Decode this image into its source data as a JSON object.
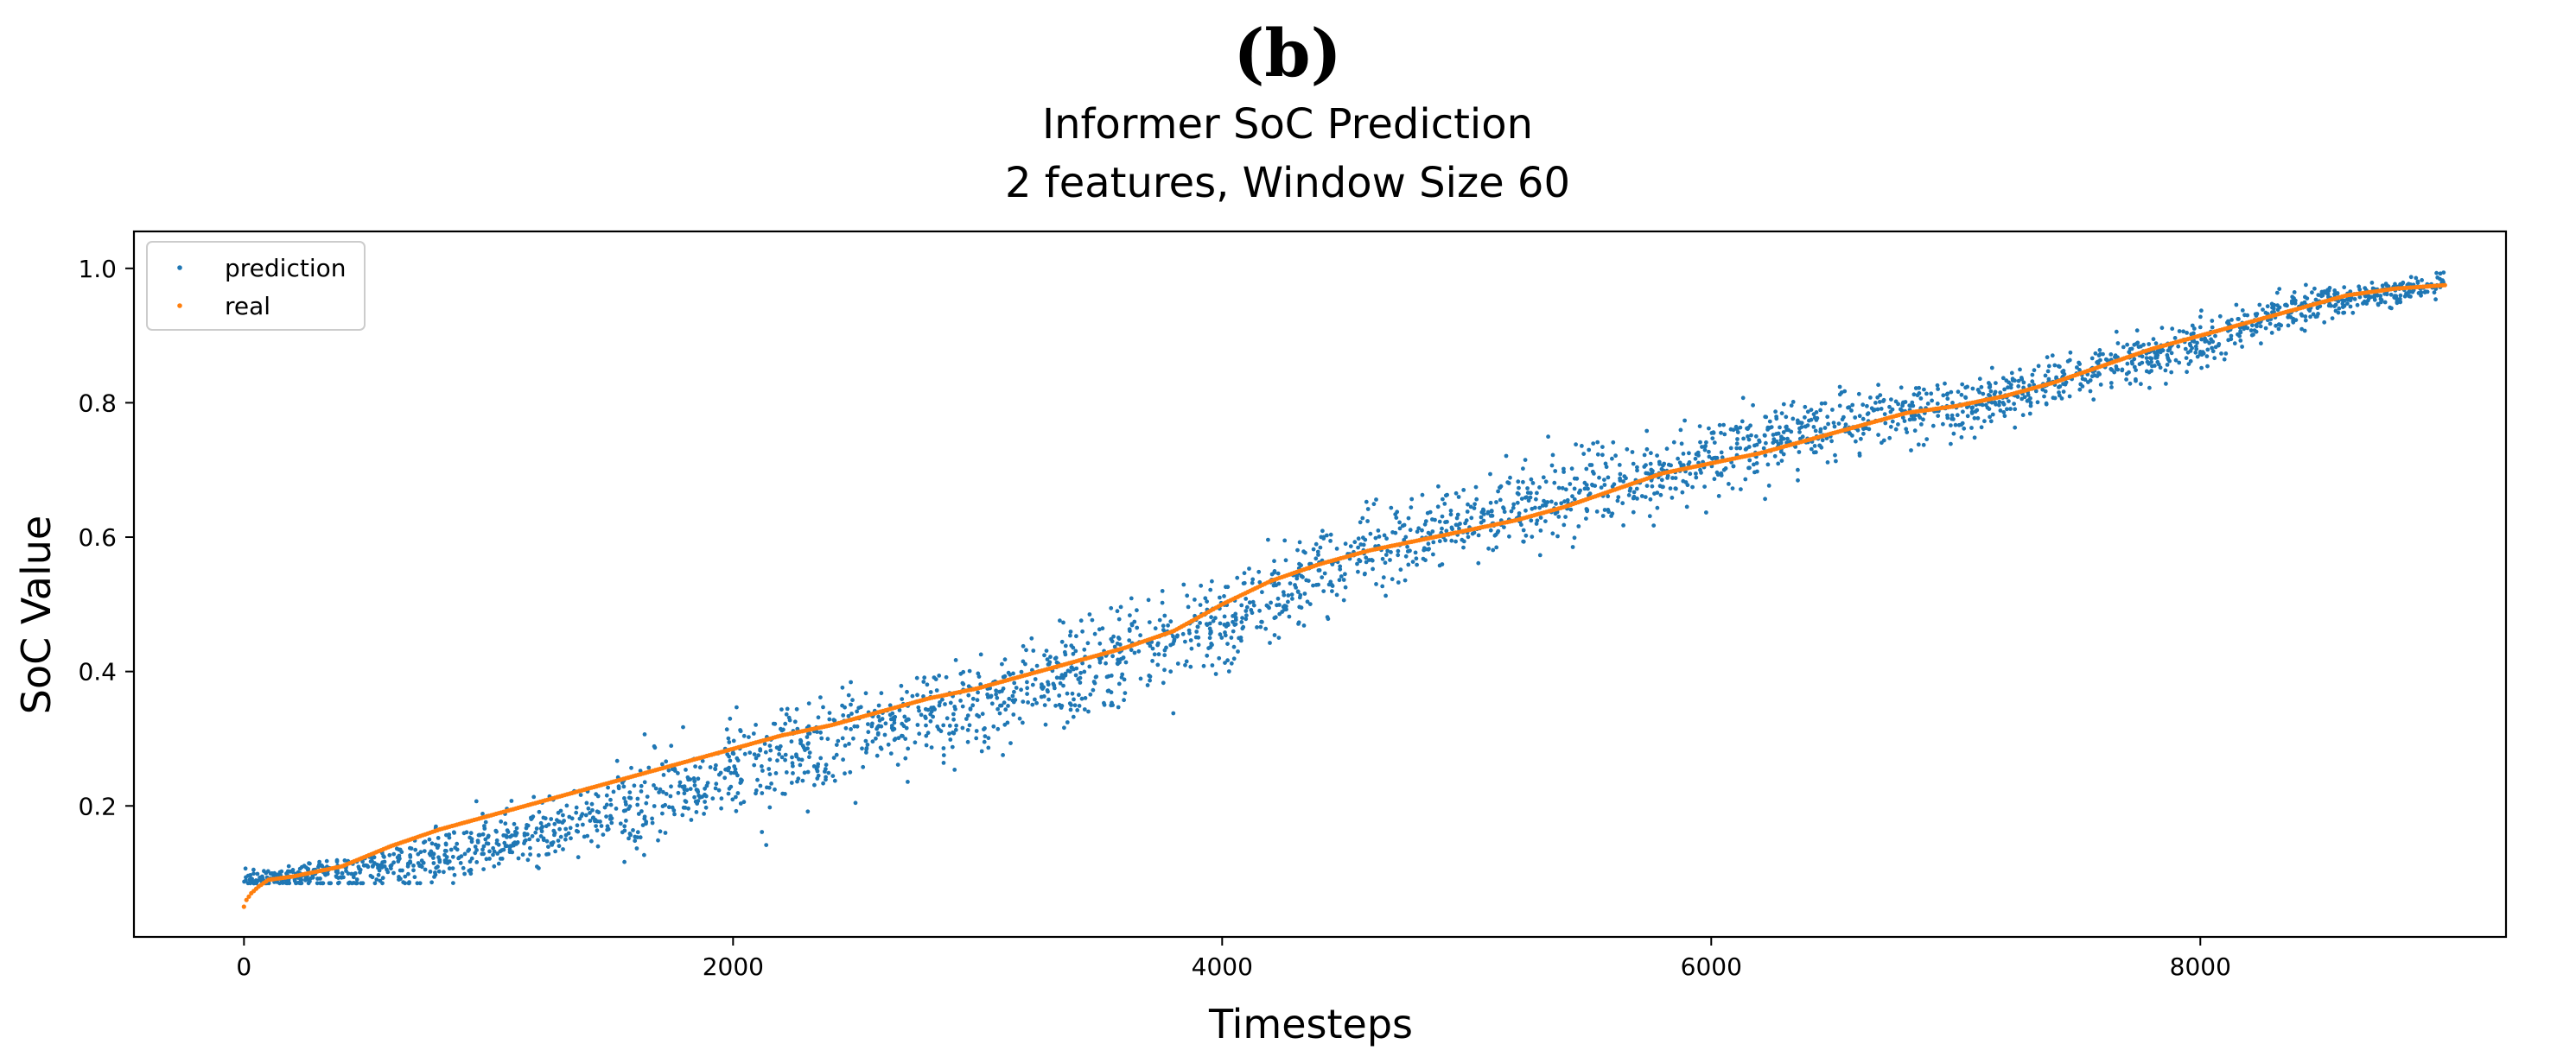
{
  "figure": {
    "panel_label": "(b)",
    "title_line1": "Informer SoC Prediction",
    "title_line2": "2 features, Window Size 60"
  },
  "colors": {
    "prediction": "#1f77b4",
    "real": "#ff7f0e",
    "axes": "#000000",
    "legend_border": "#cccccc"
  },
  "chart_data": {
    "type": "scatter",
    "xlabel": "Timesteps",
    "ylabel": "SoC Value",
    "xlim": [
      -450,
      9250
    ],
    "ylim": [
      0.005,
      1.055
    ],
    "xticks": [
      0,
      2000,
      4000,
      6000,
      8000
    ],
    "xtick_labels": [
      "0",
      "2000",
      "4000",
      "6000",
      "8000"
    ],
    "yticks": [
      0.2,
      0.4,
      0.6,
      0.8,
      1.0
    ],
    "ytick_labels": [
      "0.2",
      "0.4",
      "0.6",
      "0.8",
      "1.0"
    ],
    "grid": false,
    "legend": {
      "position": "top-left",
      "entries": [
        "prediction",
        "real"
      ]
    },
    "x_range": [
      0,
      9000
    ],
    "series": [
      {
        "name": "prediction",
        "marker": "dot",
        "trend_x": [
          0,
          200,
          500,
          1000,
          1500,
          2000,
          2500,
          3000,
          3500,
          4000,
          4500,
          5000,
          5500,
          6000,
          6500,
          7000,
          7500,
          8000,
          8500,
          9000
        ],
        "trend_y": [
          0.09,
          0.095,
          0.1,
          0.14,
          0.19,
          0.25,
          0.3,
          0.35,
          0.41,
          0.47,
          0.57,
          0.62,
          0.67,
          0.72,
          0.77,
          0.79,
          0.84,
          0.89,
          0.95,
          0.975
        ],
        "spread": [
          0.01,
          0.015,
          0.025,
          0.04,
          0.05,
          0.06,
          0.06,
          0.06,
          0.06,
          0.06,
          0.05,
          0.045,
          0.045,
          0.045,
          0.04,
          0.035,
          0.03,
          0.03,
          0.02,
          0.015
        ]
      },
      {
        "name": "real",
        "marker": "dot",
        "x": [
          0,
          10,
          30,
          60,
          100,
          200,
          400,
          600,
          800,
          1000,
          1200,
          1400,
          1600,
          1800,
          2000,
          2200,
          2400,
          2600,
          2800,
          3000,
          3200,
          3400,
          3600,
          3800,
          4000,
          4200,
          4400,
          4600,
          4800,
          5000,
          5200,
          5400,
          5600,
          5800,
          6000,
          6200,
          6400,
          6600,
          6800,
          7000,
          7200,
          7400,
          7600,
          7800,
          8000,
          8200,
          8400,
          8600,
          8800,
          9000
        ],
        "y": [
          0.05,
          0.06,
          0.07,
          0.08,
          0.09,
          0.095,
          0.11,
          0.14,
          0.165,
          0.185,
          0.205,
          0.225,
          0.245,
          0.265,
          0.285,
          0.305,
          0.32,
          0.34,
          0.36,
          0.375,
          0.395,
          0.415,
          0.435,
          0.46,
          0.5,
          0.535,
          0.56,
          0.58,
          0.595,
          0.61,
          0.625,
          0.645,
          0.67,
          0.695,
          0.71,
          0.725,
          0.745,
          0.765,
          0.785,
          0.795,
          0.81,
          0.83,
          0.855,
          0.88,
          0.9,
          0.92,
          0.94,
          0.96,
          0.97,
          0.975
        ]
      }
    ]
  }
}
